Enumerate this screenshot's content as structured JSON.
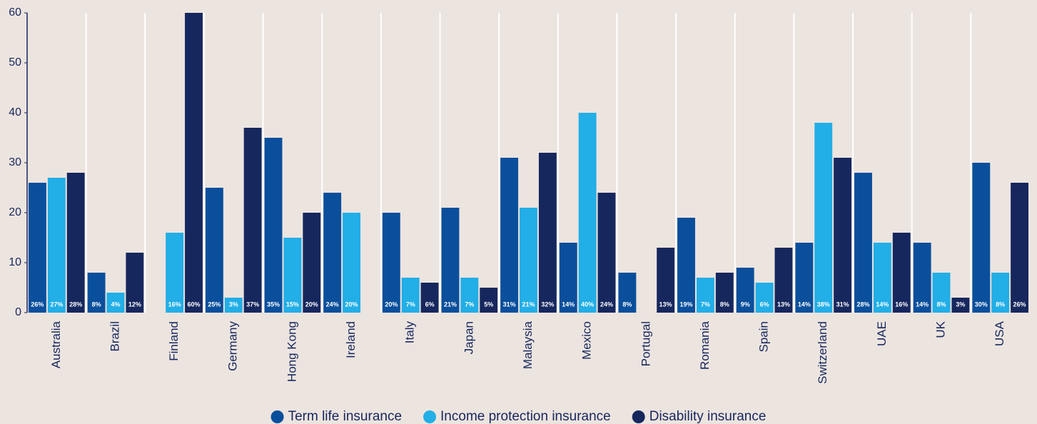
{
  "chart_data": {
    "type": "bar",
    "categories": [
      "Australia",
      "Brazil",
      "Finland",
      "Germany",
      "Hong Kong",
      "Ireland",
      "Italy",
      "Japan",
      "Malaysia",
      "Mexico",
      "Portugal",
      "Romania",
      "Spain",
      "Switzerland",
      "UAE",
      "UK",
      "USA"
    ],
    "series": [
      {
        "name": "Term life insurance",
        "color": "#0a4f9c",
        "values": [
          26,
          8,
          null,
          25,
          35,
          24,
          20,
          21,
          31,
          14,
          8,
          19,
          9,
          14,
          28,
          14,
          30
        ],
        "value_labels": [
          "26%",
          "8%",
          null,
          "25%",
          "35%",
          "24%",
          "20%",
          "21%",
          "31%",
          "14%",
          "8%",
          "19%",
          "9%",
          "14%",
          "28%",
          "14%",
          "30%"
        ]
      },
      {
        "name": "Income protection insurance",
        "color": "#22aee6",
        "values": [
          27,
          4,
          16,
          3,
          15,
          20,
          7,
          7,
          21,
          40,
          null,
          7,
          6,
          38,
          14,
          8,
          8
        ],
        "value_labels": [
          "27%",
          "4%",
          "16%",
          "3%",
          "15%",
          "20%",
          "7%",
          "7%",
          "21%",
          "40%",
          null,
          "7%",
          "6%",
          "38%",
          "14%",
          "8%",
          "8%"
        ]
      },
      {
        "name": "Disability insurance",
        "color": "#16275e",
        "values": [
          28,
          12,
          60,
          37,
          20,
          null,
          6,
          5,
          32,
          24,
          13,
          8,
          13,
          31,
          16,
          3,
          26
        ],
        "value_labels": [
          "28%",
          "12%",
          "60%",
          "37%",
          "20%",
          null,
          "6%",
          "5%",
          "32%",
          "24%",
          "13%",
          "8%",
          "13%",
          "31%",
          "16%",
          "3%",
          "26%"
        ]
      }
    ],
    "ylim": [
      0,
      60
    ],
    "yticks": [
      0,
      10,
      20,
      30,
      40,
      50,
      60
    ],
    "grid": false,
    "legend": "bottom"
  }
}
